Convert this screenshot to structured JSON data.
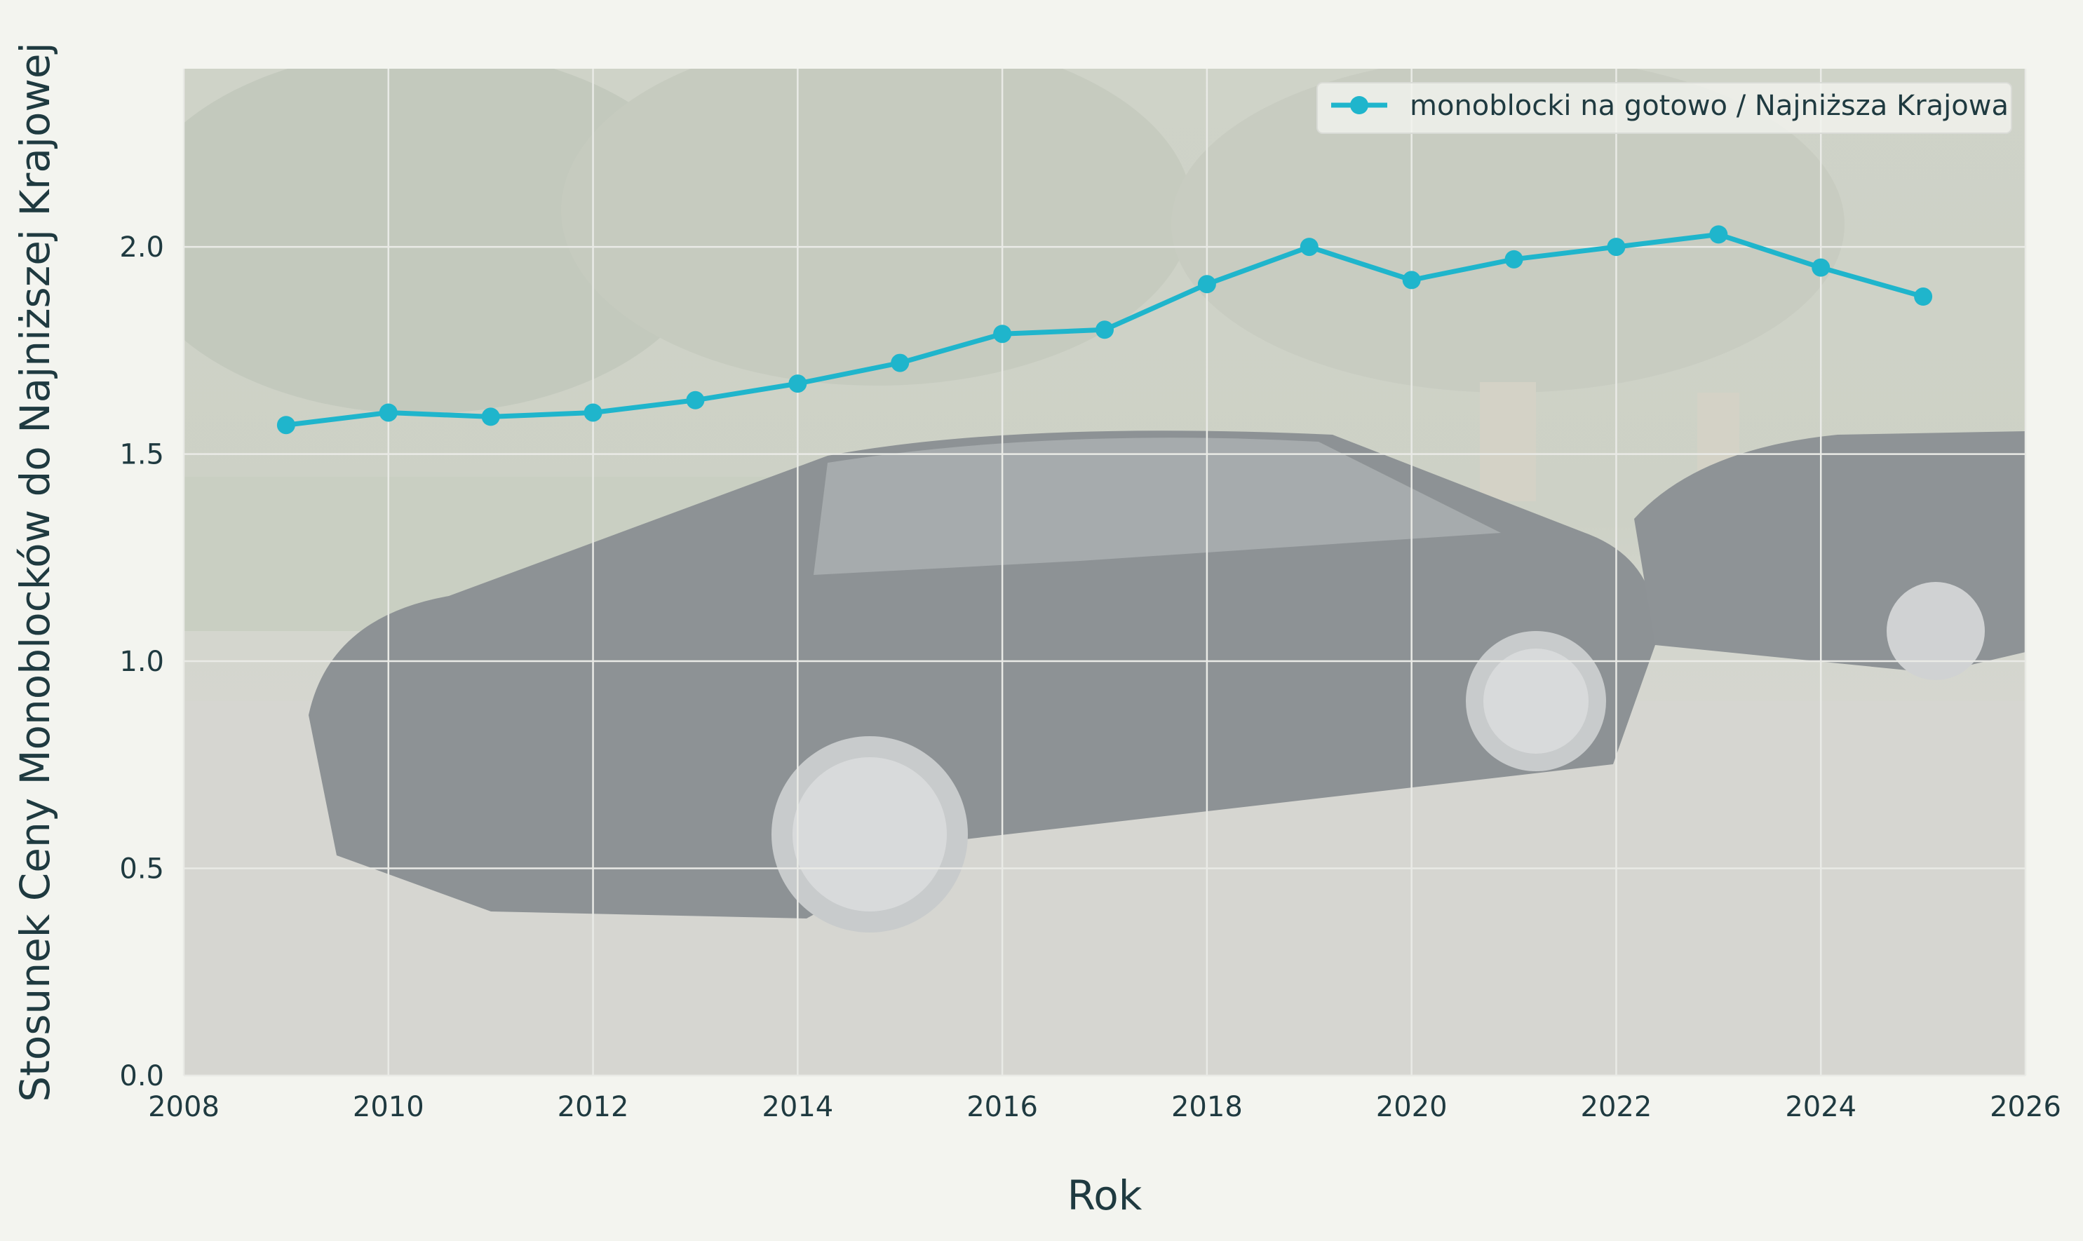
{
  "chart_data": {
    "type": "line",
    "xlabel": "Rok",
    "ylabel": "Stosunek Ceny Monoblocków do Najniższej Krajowej",
    "xlim": [
      2008,
      2026
    ],
    "ylim": [
      0.0,
      2.43
    ],
    "x_ticks": [
      "2008",
      "2010",
      "2012",
      "2014",
      "2016",
      "2018",
      "2020",
      "2022",
      "2024",
      "2026"
    ],
    "y_ticks": [
      "0.0",
      "0.5",
      "1.0",
      "1.5",
      "2.0"
    ],
    "grid": true,
    "legend_position": "top-right",
    "background_image": "photo of black Mercedes sedans parked on a street (faded)",
    "series": [
      {
        "name": "monoblocki na gotowo / Najniższa Krajowa",
        "color": "#1fb5cc",
        "marker": "circle",
        "x": [
          2009,
          2010,
          2011,
          2012,
          2013,
          2014,
          2015,
          2016,
          2017,
          2018,
          2019,
          2020,
          2021,
          2022,
          2023,
          2024,
          2025
        ],
        "y": [
          1.57,
          1.6,
          1.59,
          1.6,
          1.63,
          1.67,
          1.72,
          1.79,
          1.8,
          1.91,
          2.0,
          1.92,
          1.97,
          2.0,
          2.03,
          1.95,
          1.88
        ]
      }
    ]
  }
}
